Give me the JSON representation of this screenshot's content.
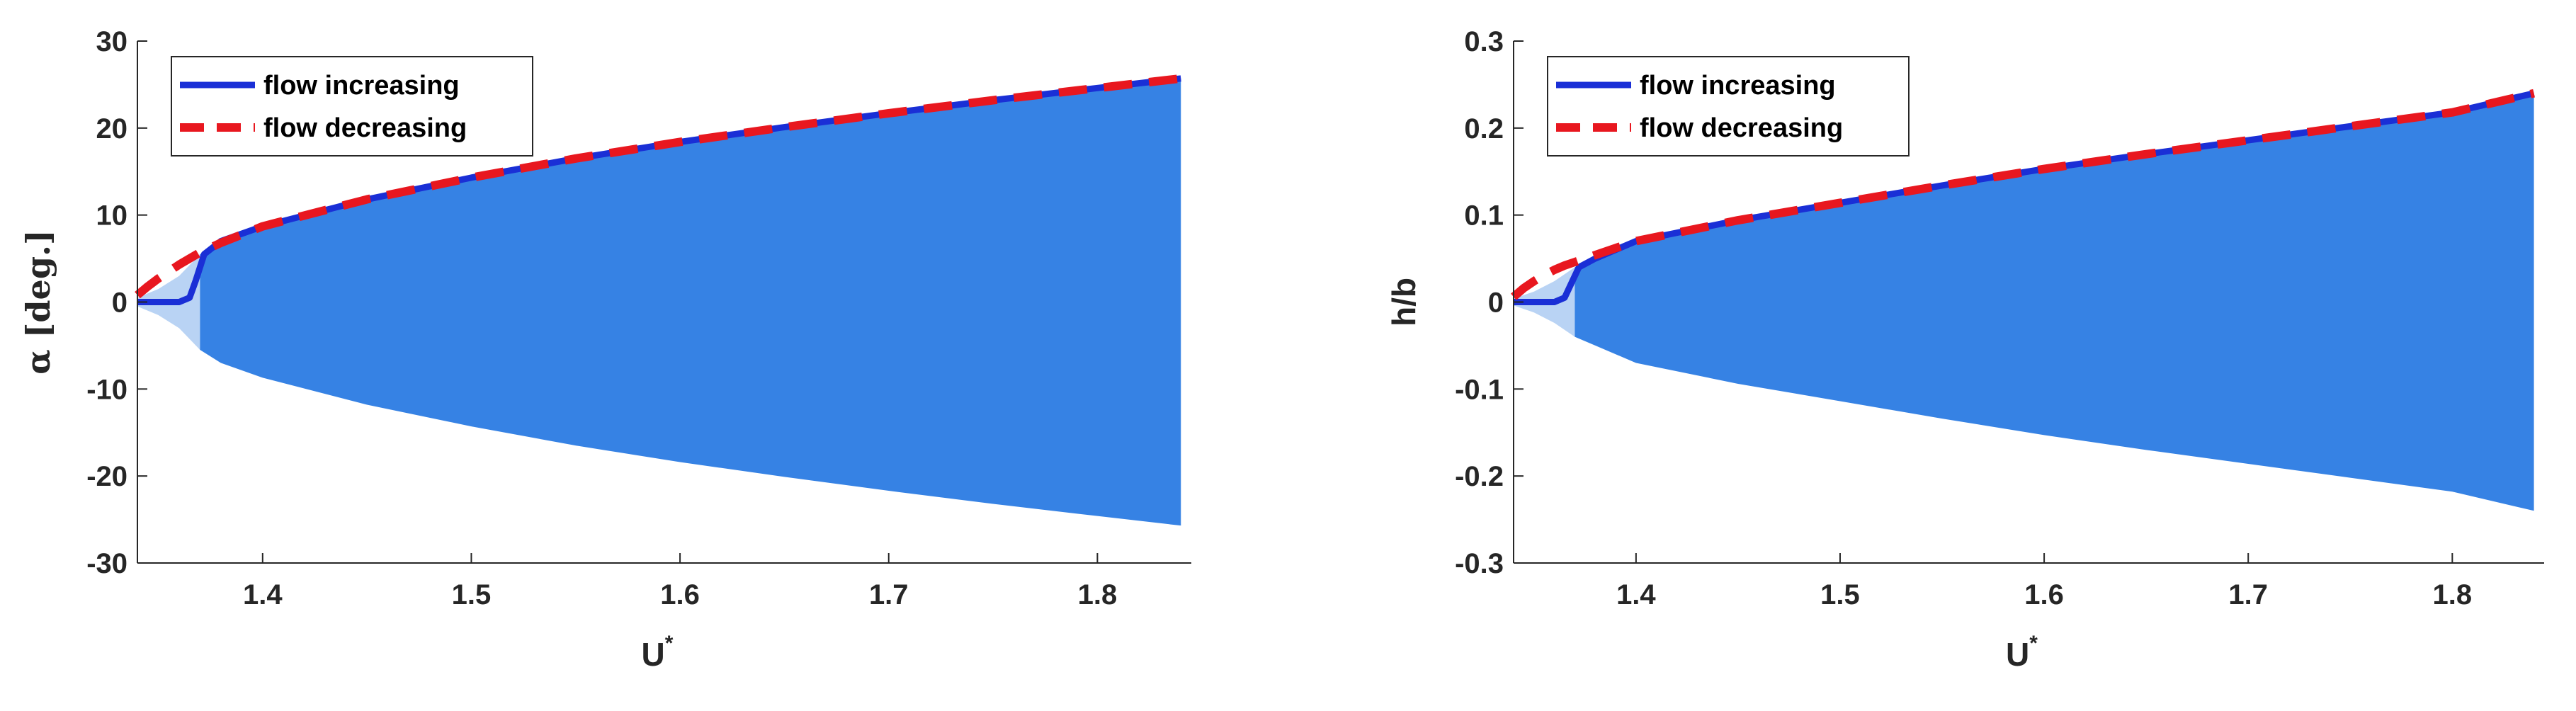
{
  "chart_data": [
    {
      "type": "line",
      "xlabel": "U",
      "xlabel_sup": "*",
      "ylabel": "α [deg.]",
      "xlim": [
        1.34,
        1.845
      ],
      "ylim": [
        -30,
        30
      ],
      "xticks": [
        "1.4",
        "1.5",
        "1.6",
        "1.7",
        "1.8"
      ],
      "xtick_values": [
        1.4,
        1.5,
        1.6,
        1.7,
        1.8
      ],
      "yticks": [
        "30",
        "20",
        "10",
        "0",
        "-10",
        "-20",
        "-30"
      ],
      "ytick_values": [
        30,
        20,
        10,
        0,
        -10,
        -20,
        -30
      ],
      "grid": false,
      "legend_position": "top-left",
      "series": [
        {
          "name": "flow increasing",
          "color": "#1a2fd6",
          "style": "solid",
          "x": [
            1.34,
            1.35,
            1.36,
            1.365,
            1.368,
            1.372,
            1.38,
            1.4,
            1.45,
            1.5,
            1.55,
            1.6,
            1.65,
            1.7,
            1.75,
            1.8,
            1.84
          ],
          "y": [
            0,
            0,
            0,
            0.5,
            2.5,
            5.5,
            7.0,
            8.7,
            11.8,
            14.3,
            16.5,
            18.4,
            20.1,
            21.7,
            23.2,
            24.6,
            25.7
          ]
        },
        {
          "name": "flow decreasing",
          "color": "#e8171f",
          "style": "dashed",
          "x": [
            1.34,
            1.345,
            1.35,
            1.355,
            1.36,
            1.365,
            1.37,
            1.38,
            1.4,
            1.45,
            1.5,
            1.55,
            1.6,
            1.65,
            1.7,
            1.75,
            1.8,
            1.84
          ],
          "y": [
            0.8,
            1.8,
            2.7,
            3.5,
            4.3,
            5.0,
            5.7,
            6.8,
            8.7,
            11.8,
            14.3,
            16.5,
            18.4,
            20.1,
            21.7,
            23.2,
            24.6,
            25.7
          ]
        }
      ],
      "envelope": {
        "color": "#3682e4",
        "faint_color": "#b9d3f4",
        "x": [
          1.37,
          1.38,
          1.4,
          1.45,
          1.5,
          1.55,
          1.6,
          1.65,
          1.7,
          1.75,
          1.8,
          1.84
        ],
        "upper": [
          5.5,
          7.0,
          8.7,
          11.8,
          14.3,
          16.5,
          18.4,
          20.1,
          21.7,
          23.2,
          24.6,
          25.7
        ],
        "lower": [
          -5.5,
          -7.0,
          -8.7,
          -11.8,
          -14.3,
          -16.5,
          -18.4,
          -20.1,
          -21.7,
          -23.2,
          -24.6,
          -25.7
        ],
        "faint_x": [
          1.34,
          1.35,
          1.36,
          1.37
        ],
        "faint_upper": [
          0.5,
          1.5,
          3.0,
          5.5
        ],
        "faint_lower": [
          -0.5,
          -1.5,
          -3.0,
          -5.5
        ]
      }
    },
    {
      "type": "line",
      "xlabel": "U",
      "xlabel_sup": "*",
      "ylabel": "h/b",
      "xlim": [
        1.34,
        1.845
      ],
      "ylim": [
        -0.3,
        0.3
      ],
      "xticks": [
        "1.4",
        "1.5",
        "1.6",
        "1.7",
        "1.8"
      ],
      "xtick_values": [
        1.4,
        1.5,
        1.6,
        1.7,
        1.8
      ],
      "yticks": [
        "0.3",
        "0.2",
        "0.1",
        "0",
        "-0.1",
        "-0.2",
        "-0.3"
      ],
      "ytick_values": [
        0.3,
        0.2,
        0.1,
        0,
        -0.1,
        -0.2,
        -0.3
      ],
      "grid": false,
      "legend_position": "top-left",
      "series": [
        {
          "name": "flow increasing",
          "color": "#1a2fd6",
          "style": "solid",
          "x": [
            1.34,
            1.35,
            1.36,
            1.365,
            1.368,
            1.372,
            1.38,
            1.4,
            1.45,
            1.5,
            1.55,
            1.6,
            1.65,
            1.7,
            1.75,
            1.8,
            1.84
          ],
          "y": [
            0,
            0,
            0,
            0.005,
            0.02,
            0.04,
            0.05,
            0.07,
            0.094,
            0.114,
            0.134,
            0.153,
            0.17,
            0.186,
            0.202,
            0.218,
            0.24
          ]
        },
        {
          "name": "flow decreasing",
          "color": "#e8171f",
          "style": "dashed",
          "x": [
            1.34,
            1.345,
            1.35,
            1.355,
            1.36,
            1.365,
            1.37,
            1.38,
            1.4,
            1.45,
            1.5,
            1.55,
            1.6,
            1.65,
            1.7,
            1.75,
            1.8,
            1.84
          ],
          "y": [
            0.006,
            0.016,
            0.024,
            0.031,
            0.037,
            0.042,
            0.046,
            0.054,
            0.07,
            0.094,
            0.114,
            0.134,
            0.153,
            0.17,
            0.186,
            0.202,
            0.218,
            0.24
          ]
        }
      ],
      "envelope": {
        "color": "#3682e4",
        "faint_color": "#b9d3f4",
        "x": [
          1.37,
          1.38,
          1.4,
          1.45,
          1.5,
          1.55,
          1.6,
          1.65,
          1.7,
          1.75,
          1.8,
          1.84
        ],
        "upper": [
          0.04,
          0.05,
          0.07,
          0.094,
          0.114,
          0.134,
          0.153,
          0.17,
          0.186,
          0.202,
          0.218,
          0.24
        ],
        "lower": [
          -0.04,
          -0.05,
          -0.07,
          -0.094,
          -0.114,
          -0.134,
          -0.153,
          -0.17,
          -0.186,
          -0.202,
          -0.218,
          -0.24
        ],
        "faint_x": [
          1.34,
          1.35,
          1.36,
          1.37
        ],
        "faint_upper": [
          0.004,
          0.012,
          0.024,
          0.04
        ],
        "faint_lower": [
          -0.004,
          -0.012,
          -0.024,
          -0.04
        ]
      }
    }
  ]
}
